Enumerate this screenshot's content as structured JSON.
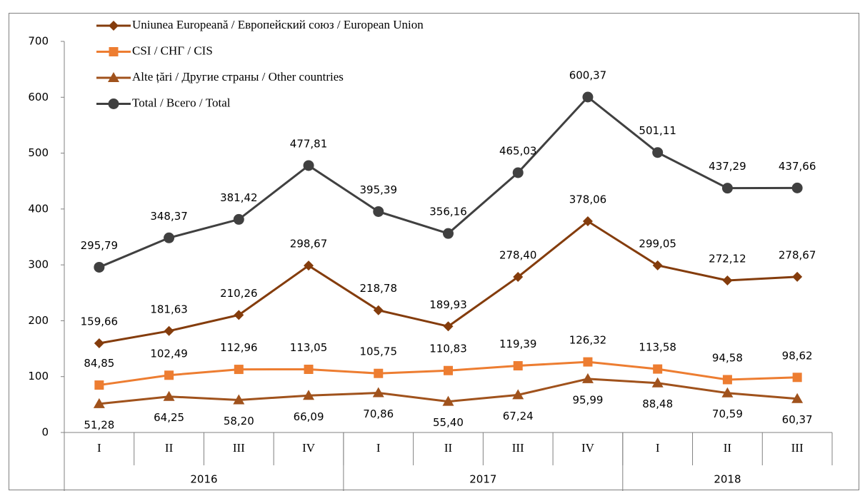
{
  "chart_data": {
    "type": "line",
    "categories": [
      "I",
      "II",
      "III",
      "IV",
      "I",
      "II",
      "III",
      "IV",
      "I",
      "II",
      "III"
    ],
    "groups": [
      {
        "label": "2016",
        "span": 4
      },
      {
        "label": "2017",
        "span": 4
      },
      {
        "label": "2018",
        "span": 3
      }
    ],
    "ylim": [
      0,
      700
    ],
    "yticks": [
      0,
      100,
      200,
      300,
      400,
      500,
      600,
      700
    ],
    "grid": false,
    "legend": "top-left",
    "series": [
      {
        "name": "Uniunea Europeană / Европейский союз / European Union",
        "color": "#843c0c",
        "marker": "diamond",
        "label_position": "above",
        "values": [
          159.66,
          181.63,
          210.26,
          298.67,
          218.78,
          189.93,
          278.4,
          378.06,
          299.05,
          272.12,
          278.67
        ],
        "value_labels": [
          "159,66",
          "181,63",
          "210,26",
          "298,67",
          "218,78",
          "189,93",
          "278,40",
          "378,06",
          "299,05",
          "272,12",
          "278,67"
        ]
      },
      {
        "name": "CSI / СНГ / CIS",
        "color": "#ed7d31",
        "marker": "square",
        "label_position": "above",
        "values": [
          84.85,
          102.49,
          112.96,
          113.05,
          105.75,
          110.83,
          119.39,
          126.32,
          113.58,
          94.58,
          98.62
        ],
        "value_labels": [
          "84,85",
          "102,49",
          "112,96",
          "113,05",
          "105,75",
          "110,83",
          "119,39",
          "126,32",
          "113,58",
          "94,58",
          "98,62"
        ]
      },
      {
        "name": "Alte țări / Другие страны / Other countries",
        "color": "#a0521c",
        "marker": "triangle",
        "label_position": "below",
        "values": [
          51.28,
          64.25,
          58.2,
          66.09,
          70.86,
          55.4,
          67.24,
          95.99,
          88.48,
          70.59,
          60.37
        ],
        "value_labels": [
          "51,28",
          "64,25",
          "58,20",
          "66,09",
          "70,86",
          "55,40",
          "67,24",
          "95,99",
          "88,48",
          "70,59",
          "60,37"
        ]
      },
      {
        "name": "Total / Всего / Total",
        "color": "#404040",
        "marker": "circle",
        "label_position": "above",
        "values": [
          295.79,
          348.37,
          381.42,
          477.81,
          395.39,
          356.16,
          465.03,
          600.37,
          501.11,
          437.29,
          437.66
        ],
        "value_labels": [
          "295,79",
          "348,37",
          "381,42",
          "477,81",
          "395,39",
          "356,16",
          "465,03",
          "600,37",
          "501,11",
          "437,29",
          "437,66"
        ]
      }
    ]
  }
}
